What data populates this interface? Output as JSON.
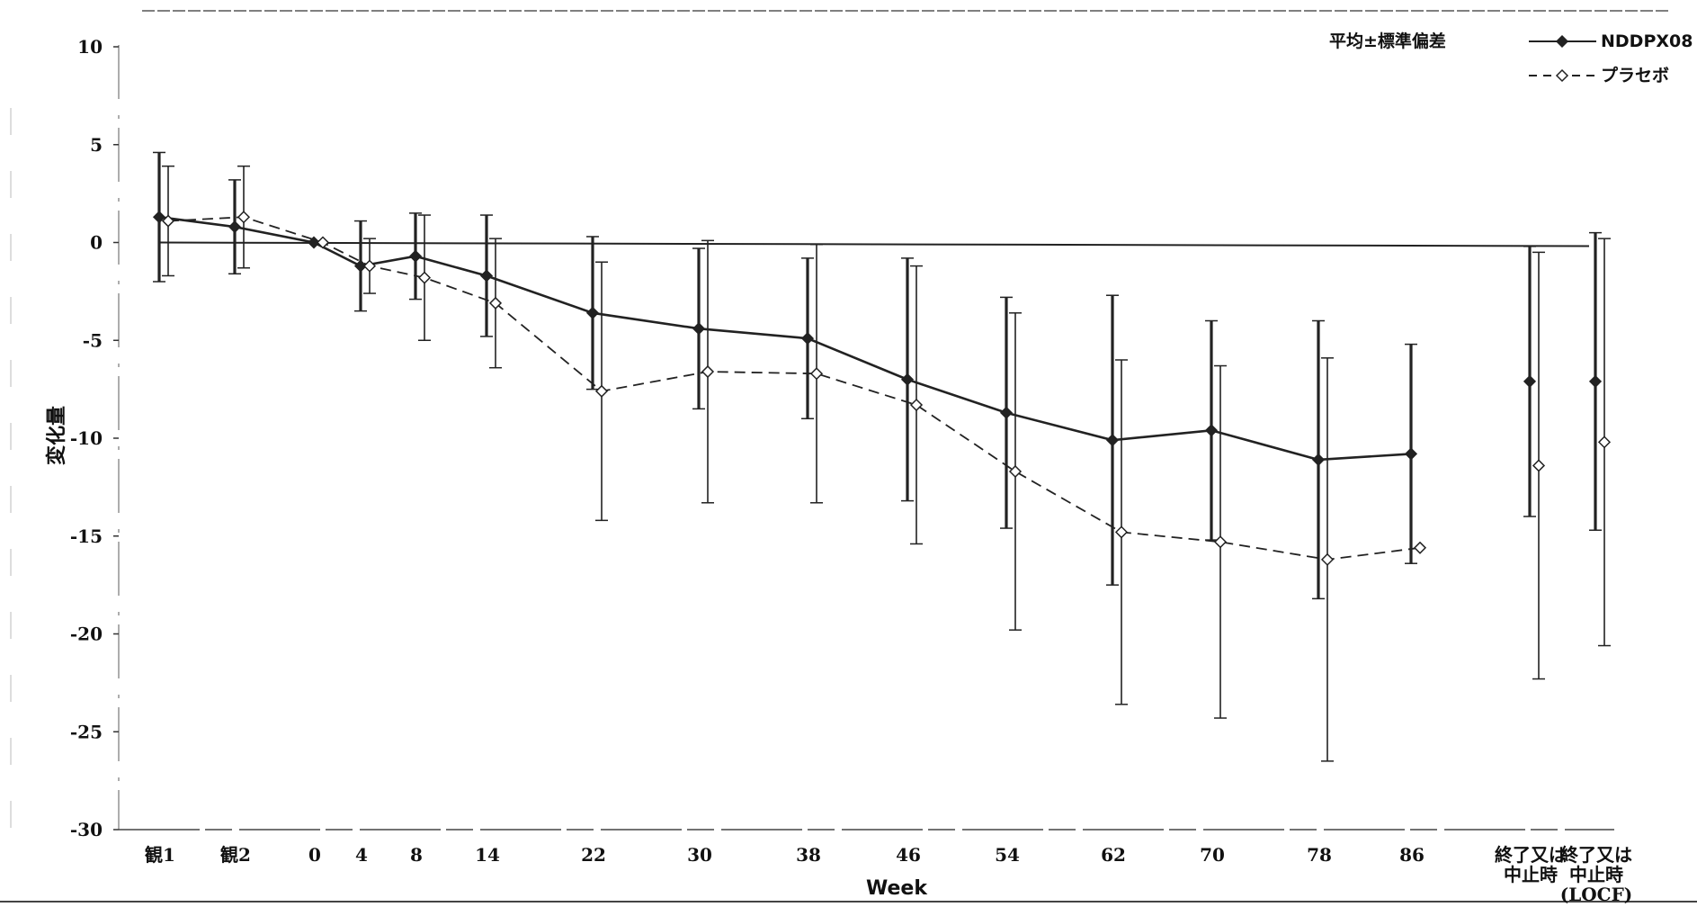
{
  "chart_data": {
    "type": "line",
    "title": "",
    "xlabel": "Week",
    "ylabel": "変化量",
    "ylim": [
      -30,
      10
    ],
    "yticks": [
      10,
      5,
      0,
      -5,
      -10,
      -15,
      -20,
      -25,
      -30
    ],
    "ytick_labels": [
      "10",
      "5",
      "0",
      "-5",
      "-10",
      "-15",
      "-20",
      "-25",
      "-30"
    ],
    "categories": [
      "観1",
      "観2",
      "0",
      "4",
      "8",
      "14",
      "22",
      "30",
      "38",
      "46",
      "54",
      "62",
      "70",
      "78",
      "86",
      "終了又は|中止時",
      "終了又は|中止時|(LOCF)"
    ],
    "annotation": "平均±標準偏差",
    "legend_position": "top-right",
    "reference_line": 0,
    "series": [
      {
        "name": "NDDPX08",
        "marker": "filled-diamond",
        "line_style": "solid",
        "color": "#222222",
        "values": [
          1.3,
          0.8,
          0.0,
          -1.2,
          -0.7,
          -1.7,
          -3.6,
          -4.4,
          -4.9,
          -7.0,
          -8.7,
          -10.1,
          -9.6,
          -11.1,
          -10.8,
          -7.1,
          -7.1
        ],
        "error": [
          3.3,
          2.4,
          0.0,
          2.3,
          2.2,
          3.1,
          3.9,
          4.1,
          4.1,
          6.2,
          5.9,
          7.4,
          5.6,
          7.1,
          5.6,
          6.9,
          7.6
        ],
        "connected": 15
      },
      {
        "name": "プラセボ",
        "marker": "open-diamond",
        "line_style": "dashed",
        "color": "#222222",
        "values": [
          1.1,
          1.3,
          0.0,
          -1.2,
          -1.8,
          -3.1,
          -7.6,
          -6.6,
          -6.7,
          -8.3,
          -11.7,
          -14.8,
          -15.3,
          -16.2,
          -15.6,
          -11.4,
          -10.2
        ],
        "error": [
          2.8,
          2.6,
          0.0,
          1.4,
          3.2,
          3.3,
          6.6,
          6.7,
          6.6,
          7.1,
          8.1,
          8.8,
          9.0,
          10.3,
          0.0,
          10.9,
          10.4
        ],
        "connected": 15
      }
    ]
  }
}
